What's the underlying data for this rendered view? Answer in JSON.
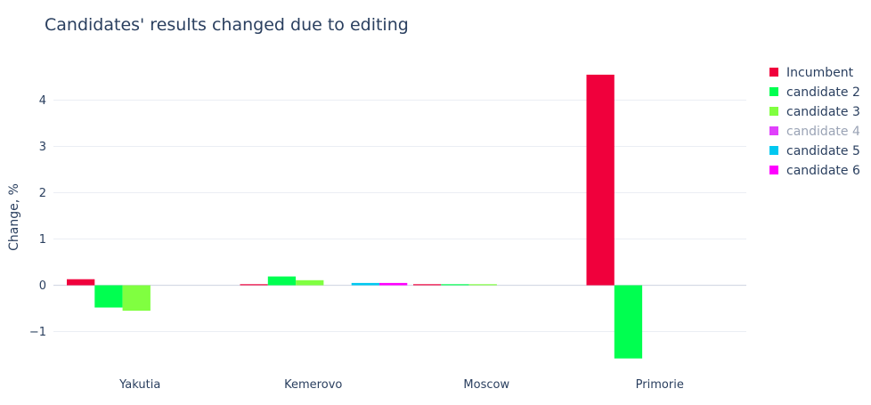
{
  "chart_data": {
    "type": "bar",
    "title": "Candidates' results changed due to editing",
    "xlabel": "",
    "ylabel": "Change, %",
    "ylim": [
      -1.6,
      4.6
    ],
    "yticks": [
      4,
      3,
      2,
      1,
      0,
      -1
    ],
    "ytick_labels": [
      "4",
      "3",
      "2",
      "1",
      "0",
      "−1"
    ],
    "grid": true,
    "legend_position": "right",
    "categories": [
      "Yakutia",
      "Kemerovo",
      "Moscow",
      "Primorie"
    ],
    "series": [
      {
        "name": "Incumbent",
        "color": "#f0003c",
        "values": [
          0.13,
          0.02,
          0.01,
          4.55
        ]
      },
      {
        "name": "candidate 2",
        "color": "#00ff50",
        "values": [
          -0.48,
          0.19,
          0.01,
          -1.58
        ]
      },
      {
        "name": "candidate 3",
        "color": "#80ff40",
        "values": [
          -0.55,
          0.11,
          0.01,
          0
        ]
      },
      {
        "name": "candidate 4",
        "color": "#e040fb",
        "values": [
          0,
          0,
          0,
          0
        ],
        "dimmed": true
      },
      {
        "name": "candidate 5",
        "color": "#00c8f0",
        "values": [
          0,
          0.05,
          0,
          0
        ]
      },
      {
        "name": "candidate 6",
        "color": "#ff00ff",
        "values": [
          0,
          0.05,
          0,
          0
        ]
      }
    ]
  }
}
